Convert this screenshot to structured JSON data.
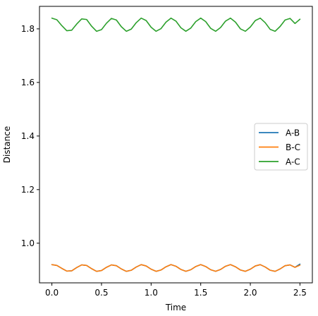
{
  "chart_data": {
    "type": "line",
    "xlabel": "Time",
    "ylabel": "Distance",
    "xlim": [
      -0.125,
      2.625
    ],
    "ylim": [
      0.852,
      1.884
    ],
    "xticks": [
      0.0,
      0.5,
      1.0,
      1.5,
      2.0,
      2.5
    ],
    "xtick_labels": [
      "0.0",
      "0.5",
      "1.0",
      "1.5",
      "2.0",
      "2.5"
    ],
    "yticks": [
      1.0,
      1.2,
      1.4,
      1.6,
      1.8
    ],
    "ytick_labels": [
      "1.0",
      "1.2",
      "1.4",
      "1.6",
      "1.8"
    ],
    "grid": false,
    "legend_position": "center-right",
    "x": [
      0.0,
      0.05,
      0.1,
      0.15,
      0.2,
      0.25,
      0.3,
      0.35,
      0.4,
      0.45,
      0.5,
      0.55,
      0.6,
      0.65,
      0.7,
      0.75,
      0.8,
      0.85,
      0.9,
      0.95,
      1.0,
      1.05,
      1.1,
      1.15,
      1.2,
      1.25,
      1.3,
      1.35,
      1.4,
      1.45,
      1.5,
      1.55,
      1.6,
      1.65,
      1.7,
      1.75,
      1.8,
      1.85,
      1.9,
      1.95,
      2.0,
      2.05,
      2.1,
      2.15,
      2.2,
      2.25,
      2.3,
      2.35,
      2.4,
      2.45,
      2.5
    ],
    "series": [
      {
        "name": "A-B",
        "color": "#1f77b4",
        "values": [
          0.92,
          0.917,
          0.906,
          0.896,
          0.897,
          0.909,
          0.919,
          0.917,
          0.905,
          0.895,
          0.898,
          0.91,
          0.919,
          0.916,
          0.904,
          0.895,
          0.899,
          0.911,
          0.92,
          0.915,
          0.903,
          0.895,
          0.9,
          0.912,
          0.92,
          0.914,
          0.902,
          0.895,
          0.901,
          0.913,
          0.92,
          0.913,
          0.901,
          0.895,
          0.902,
          0.914,
          0.92,
          0.912,
          0.9,
          0.895,
          0.903,
          0.915,
          0.92,
          0.911,
          0.899,
          0.895,
          0.904,
          0.916,
          0.919,
          0.91,
          0.922
        ]
      },
      {
        "name": "B-C",
        "color": "#ff7f0e",
        "values": [
          0.92,
          0.917,
          0.906,
          0.896,
          0.897,
          0.909,
          0.919,
          0.917,
          0.905,
          0.895,
          0.898,
          0.91,
          0.919,
          0.916,
          0.904,
          0.895,
          0.899,
          0.911,
          0.92,
          0.915,
          0.903,
          0.895,
          0.9,
          0.912,
          0.92,
          0.914,
          0.902,
          0.895,
          0.901,
          0.913,
          0.92,
          0.913,
          0.901,
          0.895,
          0.902,
          0.914,
          0.92,
          0.912,
          0.9,
          0.895,
          0.903,
          0.915,
          0.92,
          0.911,
          0.899,
          0.895,
          0.904,
          0.916,
          0.919,
          0.91,
          0.918
        ]
      },
      {
        "name": "A-C",
        "color": "#2ca02c",
        "values": [
          1.84,
          1.834,
          1.812,
          1.793,
          1.795,
          1.818,
          1.837,
          1.835,
          1.81,
          1.791,
          1.797,
          1.821,
          1.839,
          1.833,
          1.808,
          1.791,
          1.799,
          1.823,
          1.84,
          1.831,
          1.806,
          1.791,
          1.801,
          1.825,
          1.84,
          1.829,
          1.804,
          1.791,
          1.803,
          1.827,
          1.84,
          1.827,
          1.802,
          1.791,
          1.805,
          1.829,
          1.84,
          1.825,
          1.8,
          1.791,
          1.807,
          1.831,
          1.84,
          1.823,
          1.798,
          1.791,
          1.809,
          1.833,
          1.839,
          1.82,
          1.836
        ]
      }
    ]
  }
}
